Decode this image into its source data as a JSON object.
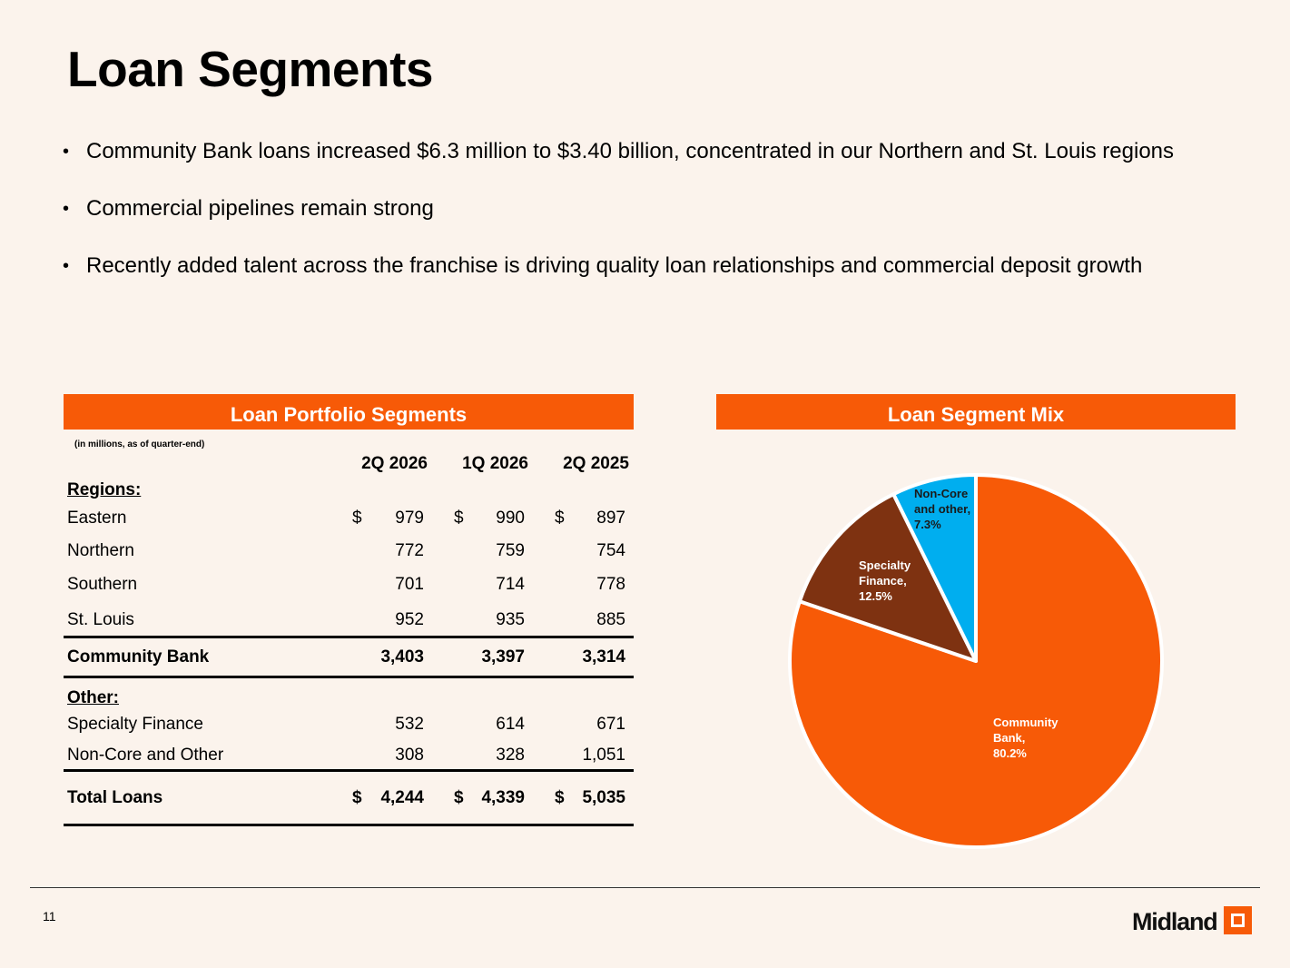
{
  "title": "Loan Segments",
  "bullets": [
    "Community Bank loans increased $6.3 million to $3.40 billion, concentrated in our Northern and St. Louis regions",
    "Commercial pipelines remain strong",
    "Recently added talent across the franchise is driving quality loan relationships and commercial deposit growth"
  ],
  "table": {
    "header": "Loan Portfolio Segments",
    "note": "(in millions, as of quarter-end)",
    "columns": [
      "2Q 2026",
      "1Q 2026",
      "2Q 2025"
    ],
    "currency_symbol": "$",
    "sections": {
      "regions_label": "Regions:",
      "other_label": "Other:"
    },
    "rows": {
      "eastern": {
        "label": "Eastern",
        "values": [
          "979",
          "990",
          "897"
        ]
      },
      "northern": {
        "label": "Northern",
        "values": [
          "772",
          "759",
          "754"
        ]
      },
      "southern": {
        "label": "Southern",
        "values": [
          "701",
          "714",
          "778"
        ]
      },
      "st_louis": {
        "label": "St. Louis",
        "values": [
          "952",
          "935",
          "885"
        ]
      },
      "community_bank": {
        "label": "Community Bank",
        "values": [
          "3,403",
          "3,397",
          "3,314"
        ]
      },
      "specialty_finance": {
        "label": "Specialty Finance",
        "values": [
          "532",
          "614",
          "671"
        ]
      },
      "non_core": {
        "label": "Non-Core and Other",
        "values": [
          "308",
          "328",
          "1,051"
        ]
      },
      "total": {
        "label": "Total Loans",
        "values": [
          "4,244",
          "4,339",
          "5,035"
        ]
      }
    }
  },
  "pie_header": "Loan Segment Mix",
  "chart_data": {
    "type": "pie",
    "slices": [
      {
        "label_lines": [
          "Community",
          "Bank,",
          "80.2%"
        ],
        "value": 80.2,
        "color": "#F75A07",
        "label_color": "#FFFFFF"
      },
      {
        "label_lines": [
          "Specialty",
          "Finance,",
          "12.5%"
        ],
        "value": 12.5,
        "color": "#7E3211",
        "label_color": "#FFFFFF"
      },
      {
        "label_lines": [
          "Non-Core",
          "and other,",
          "7.3%"
        ],
        "value": 7.3,
        "color": "#00AEEF",
        "label_color": "#1A1A1A"
      }
    ]
  },
  "footer": {
    "page_number": "11",
    "logo_text": "Midland"
  }
}
